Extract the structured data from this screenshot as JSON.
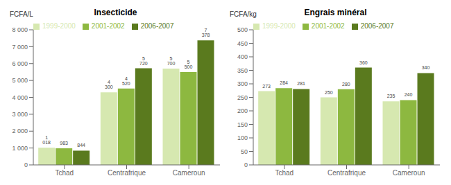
{
  "chart_data": [
    {
      "type": "bar",
      "title": "Insecticide",
      "ylabel": "FCFA/L",
      "categories": [
        "Tchad",
        "Centrafrique",
        "Cameroun"
      ],
      "series": [
        {
          "name": "1999-2000",
          "color": "#d6e8b0",
          "values": [
            1018,
            4300,
            5700
          ],
          "value_labels": [
            "1 018",
            "4 300",
            "5 700"
          ]
        },
        {
          "name": "2001-2002",
          "color": "#8db840",
          "values": [
            983,
            4520,
            5500
          ],
          "value_labels": [
            "983",
            "4 520",
            "5 500"
          ]
        },
        {
          "name": "2006-2007",
          "color": "#5a7a1e",
          "values": [
            844,
            5720,
            7378
          ],
          "value_labels": [
            "844",
            "5 720",
            "7 378"
          ]
        }
      ],
      "ylim": [
        0,
        8000
      ],
      "yticks": [
        0,
        {
          "value": 1000,
          "label": "1 000"
        },
        {
          "value": 2000,
          "label": "2 000"
        },
        {
          "value": 3000,
          "label": "3 000"
        },
        {
          "value": 4000,
          "label": "4 000"
        },
        {
          "value": 5000,
          "label": "5 000"
        },
        {
          "value": 6000,
          "label": "6 000"
        },
        {
          "value": 7000,
          "label": "7 000"
        },
        {
          "value": 8000,
          "label": "8 000"
        }
      ],
      "grid": false,
      "legend": "upper left",
      "data_labels": true
    },
    {
      "type": "bar",
      "title": "Engrais minéral",
      "ylabel": "FCFA/kg",
      "categories": [
        "Tchad",
        "Centrafrique",
        "Cameroun"
      ],
      "series": [
        {
          "name": "1999-2000",
          "color": "#d6e8b0",
          "values": [
            273,
            250,
            235
          ]
        },
        {
          "name": "2001-2002",
          "color": "#8db840",
          "values": [
            284,
            280,
            240
          ]
        },
        {
          "name": "2006-2007",
          "color": "#5a7a1e",
          "values": [
            281,
            360,
            340
          ]
        }
      ],
      "ylim": [
        0,
        500
      ],
      "yticks": [
        0,
        50,
        100,
        150,
        200,
        250,
        300,
        350,
        400,
        450,
        500
      ],
      "grid": false,
      "legend": "upper left",
      "data_labels": true
    }
  ]
}
